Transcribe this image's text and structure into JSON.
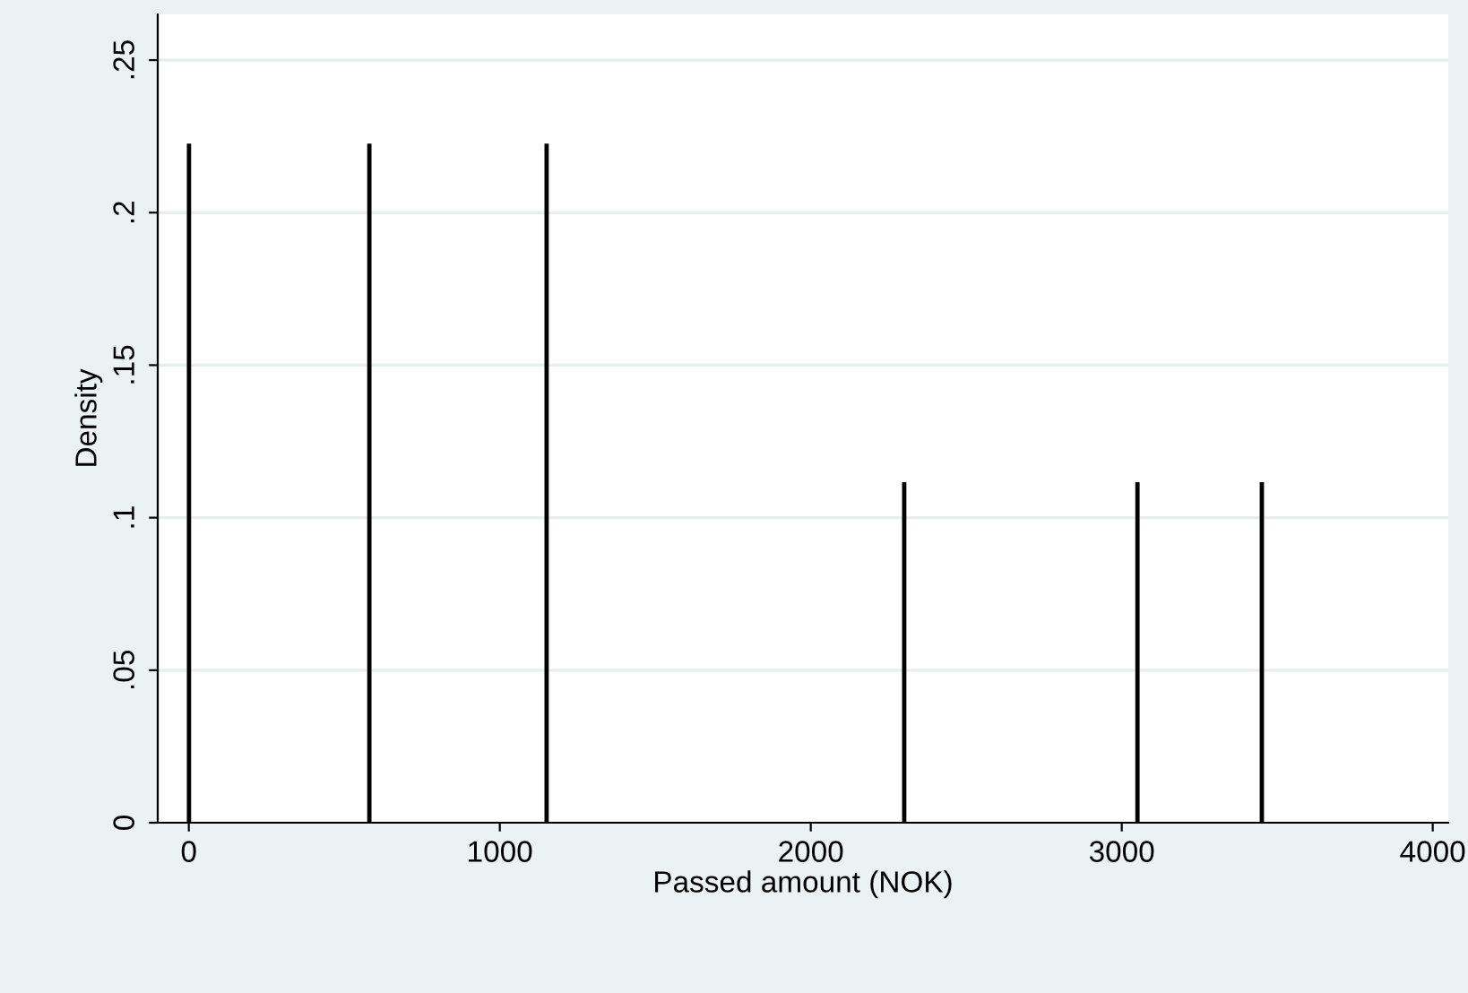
{
  "chart_data": {
    "type": "histogram",
    "xlabel": "Passed amount (NOK)",
    "ylabel": "Density",
    "bins": [
      0,
      1,
      580,
      581,
      1150,
      1151,
      2300,
      2301,
      3050,
      3051,
      3450,
      3451
    ],
    "values": [
      0.222,
      0,
      0.222,
      0,
      0.222,
      0,
      0.111,
      0,
      0.111,
      0,
      0.111
    ],
    "color": "#000000",
    "xlim": [
      -100,
      4050
    ],
    "xticks": [
      0,
      1000,
      2000,
      3000,
      4000
    ],
    "ylim": [
      0,
      0.265
    ],
    "yticks": [
      {
        "value": 0,
        "label": "0"
      },
      {
        "value": 0.05,
        "label": ".05"
      },
      {
        "value": 0.1,
        "label": ".1"
      },
      {
        "value": 0.15,
        "label": ".15"
      },
      {
        "value": 0.2,
        "label": ".2"
      },
      {
        "value": 0.25,
        "label": ".25"
      }
    ],
    "grid": "y",
    "legend": false
  }
}
